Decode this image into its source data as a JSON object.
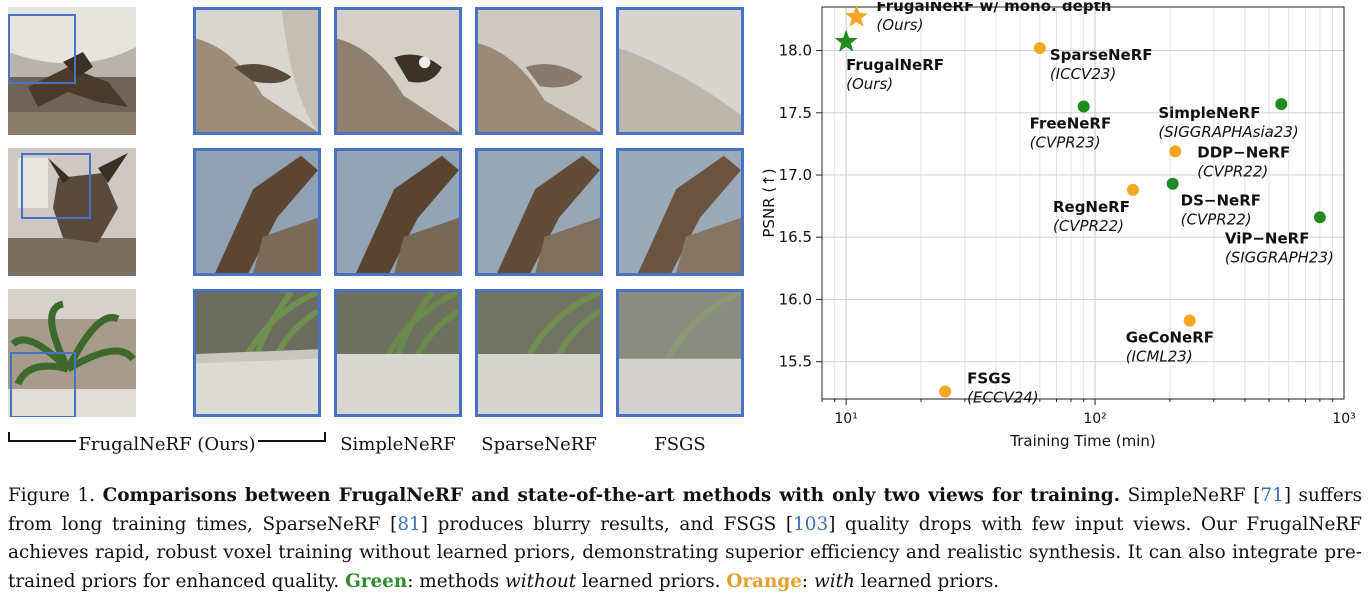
{
  "figure": {
    "column_labels": {
      "frugal": "FrugalNeRF (Ours)",
      "simple": "SimpleNeRF",
      "sparse": "SparseNeRF",
      "fsgs": "FSGS"
    }
  },
  "colors": {
    "green": "#1f8a1f",
    "orange": "#f5a623",
    "tile_border": "#4a72c4",
    "cite": "#3b6fb6"
  },
  "chart_data": {
    "type": "scatter",
    "xlabel": "Training Time (min)",
    "ylabel": "PSNR (↑)",
    "xscale": "log",
    "xlim": [
      8,
      1000
    ],
    "ylim": [
      15.2,
      18.35
    ],
    "yticks": [
      "15.5",
      "16.0",
      "16.5",
      "17.0",
      "17.5",
      "18.0"
    ],
    "xticks": [
      "10¹",
      "10²",
      "10³"
    ],
    "grid": true,
    "points": [
      {
        "method": "FrugalNeRF w/ mono. depth",
        "venue": "(Ours)",
        "x": 11,
        "y": 18.27,
        "color": "orange",
        "marker": "star"
      },
      {
        "method": "FrugalNeRF",
        "venue": "(Ours)",
        "x": 10,
        "y": 18.07,
        "color": "green",
        "marker": "star"
      },
      {
        "method": "SparseNeRF",
        "venue": "(ICCV23)",
        "x": 60,
        "y": 18.02,
        "color": "orange",
        "marker": "circle"
      },
      {
        "method": "FreeNeRF",
        "venue": "(CVPR23)",
        "x": 90,
        "y": 17.55,
        "color": "green",
        "marker": "circle"
      },
      {
        "method": "SimpleNeRF",
        "venue": "(SIGGRAPHAsia23)",
        "x": 560,
        "y": 17.57,
        "color": "green",
        "marker": "circle"
      },
      {
        "method": "DDP−NeRF",
        "venue": "(CVPR22)",
        "x": 210,
        "y": 17.19,
        "color": "orange",
        "marker": "circle"
      },
      {
        "method": "DS−NeRF",
        "venue": "(CVPR22)",
        "x": 205,
        "y": 16.93,
        "color": "green",
        "marker": "circle"
      },
      {
        "method": "RegNeRF",
        "venue": "(CVPR22)",
        "x": 142,
        "y": 16.88,
        "color": "orange",
        "marker": "circle"
      },
      {
        "method": "ViP−NeRF",
        "venue": "(SIGGRAPH23)",
        "x": 800,
        "y": 16.66,
        "color": "green",
        "marker": "circle"
      },
      {
        "method": "GeCoNeRF",
        "venue": "(ICML23)",
        "x": 240,
        "y": 15.83,
        "color": "orange",
        "marker": "circle"
      },
      {
        "method": "FSGS",
        "venue": "(ECCV24)",
        "x": 25,
        "y": 15.26,
        "color": "orange",
        "marker": "circle"
      }
    ]
  },
  "caption": {
    "fig_label": "Figure 1.",
    "bold_title": "Comparisons between FrugalNeRF and state-of-the-art methods with only two views for training.",
    "t1": "SimpleNeRF [",
    "c1": "71",
    "t2": "] suffers from long training times, SparseNeRF [",
    "c2": "81",
    "t3": "] produces blurry results, and FSGS [",
    "c3": "103",
    "t4": "] quality drops with few input views. Our FrugalNeRF achieves rapid, robust voxel training without learned priors, demonstrating superior efficiency and realistic synthesis. It can also integrate pre-trained priors for enhanced quality.",
    "green_word": "Green",
    "t5": ": methods",
    "without": "without",
    "t6": "learned priors.",
    "orange_word": "Orange",
    "t7": ":",
    "with": "with",
    "t8": "learned priors."
  }
}
